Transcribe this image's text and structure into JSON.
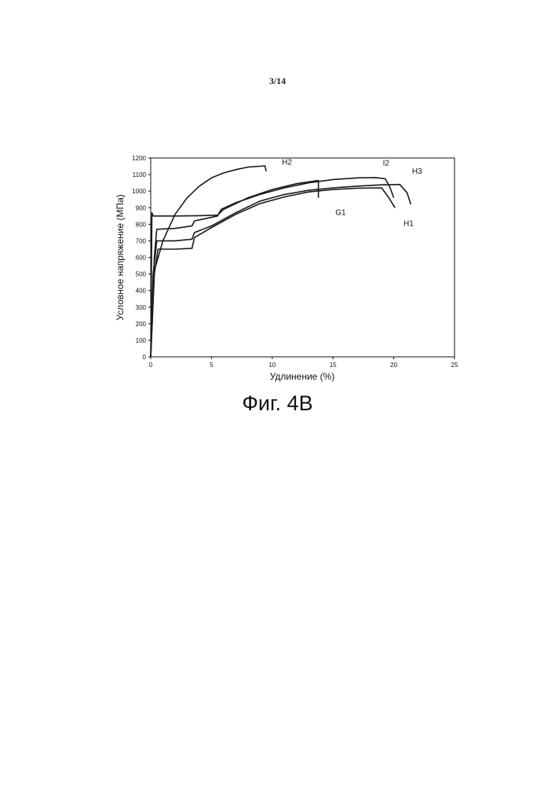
{
  "page": {
    "number": "3/14",
    "caption": "Фиг. 4B"
  },
  "chart_data": {
    "type": "line",
    "xlabel": "Удлинение (%)",
    "ylabel": "Условное напряжение (МПа)",
    "xlim": [
      0,
      25
    ],
    "ylim": [
      0,
      1200
    ],
    "xticks": [
      0,
      5,
      10,
      15,
      20,
      25
    ],
    "yticks": [
      0,
      100,
      200,
      300,
      400,
      500,
      600,
      700,
      800,
      900,
      1000,
      1100,
      1200
    ],
    "grid": false,
    "legend": "inline labels",
    "line_color": "#1a1a1a",
    "series": [
      {
        "name": "H2",
        "x": [
          0,
          0.3,
          1.0,
          2.0,
          3.0,
          4.0,
          5.0,
          6.0,
          7.0,
          8.0,
          9.0,
          9.4,
          9.5
        ],
        "y": [
          0,
          520,
          700,
          860,
          960,
          1030,
          1080,
          1110,
          1130,
          1145,
          1150,
          1152,
          1120
        ]
      },
      {
        "name": "I2",
        "x": [
          0,
          0.3,
          0.5,
          2.0,
          3.4,
          3.6,
          5.5,
          5.8,
          7.0,
          9.0,
          11.0,
          13.0,
          15.0,
          17.0,
          18.5,
          19.3,
          19.7,
          20.0
        ],
        "y": [
          0,
          600,
          770,
          775,
          790,
          820,
          850,
          890,
          930,
          980,
          1020,
          1050,
          1070,
          1080,
          1082,
          1075,
          1020,
          960
        ]
      },
      {
        "name": "H3",
        "x": [
          0,
          0.2,
          0.5,
          2.0,
          3.4,
          3.6,
          5.0,
          7.0,
          9.0,
          11.0,
          13.0,
          15.0,
          17.0,
          19.0,
          20.5,
          21.1,
          21.4
        ],
        "y": [
          0,
          500,
          700,
          700,
          710,
          750,
          790,
          870,
          940,
          980,
          1005,
          1020,
          1030,
          1038,
          1040,
          990,
          920
        ]
      },
      {
        "name": "H1",
        "x": [
          0,
          0.3,
          0.6,
          2.0,
          3.4,
          3.6,
          5.0,
          7.0,
          9.0,
          11.0,
          13.0,
          15.0,
          17.0,
          19.0,
          19.6,
          20.1
        ],
        "y": [
          0,
          500,
          650,
          650,
          655,
          720,
          780,
          860,
          925,
          965,
          995,
          1010,
          1018,
          1020,
          960,
          900
        ]
      },
      {
        "name": "G1",
        "x": [
          0,
          0.1,
          0.2,
          2.0,
          4.0,
          5.5,
          6.0,
          8.0,
          10.0,
          12.0,
          13.6,
          13.8,
          13.8
        ],
        "y": [
          0,
          870,
          850,
          850,
          852,
          855,
          890,
          960,
          1010,
          1045,
          1062,
          1065,
          960
        ]
      }
    ],
    "annotations": [
      {
        "text": "H2",
        "x": 10.8,
        "y": 1160
      },
      {
        "text": "I2",
        "x": 19.1,
        "y": 1155
      },
      {
        "text": "H3",
        "x": 21.5,
        "y": 1105
      },
      {
        "text": "G1",
        "x": 15.2,
        "y": 855
      },
      {
        "text": "H1",
        "x": 20.8,
        "y": 790
      }
    ]
  }
}
